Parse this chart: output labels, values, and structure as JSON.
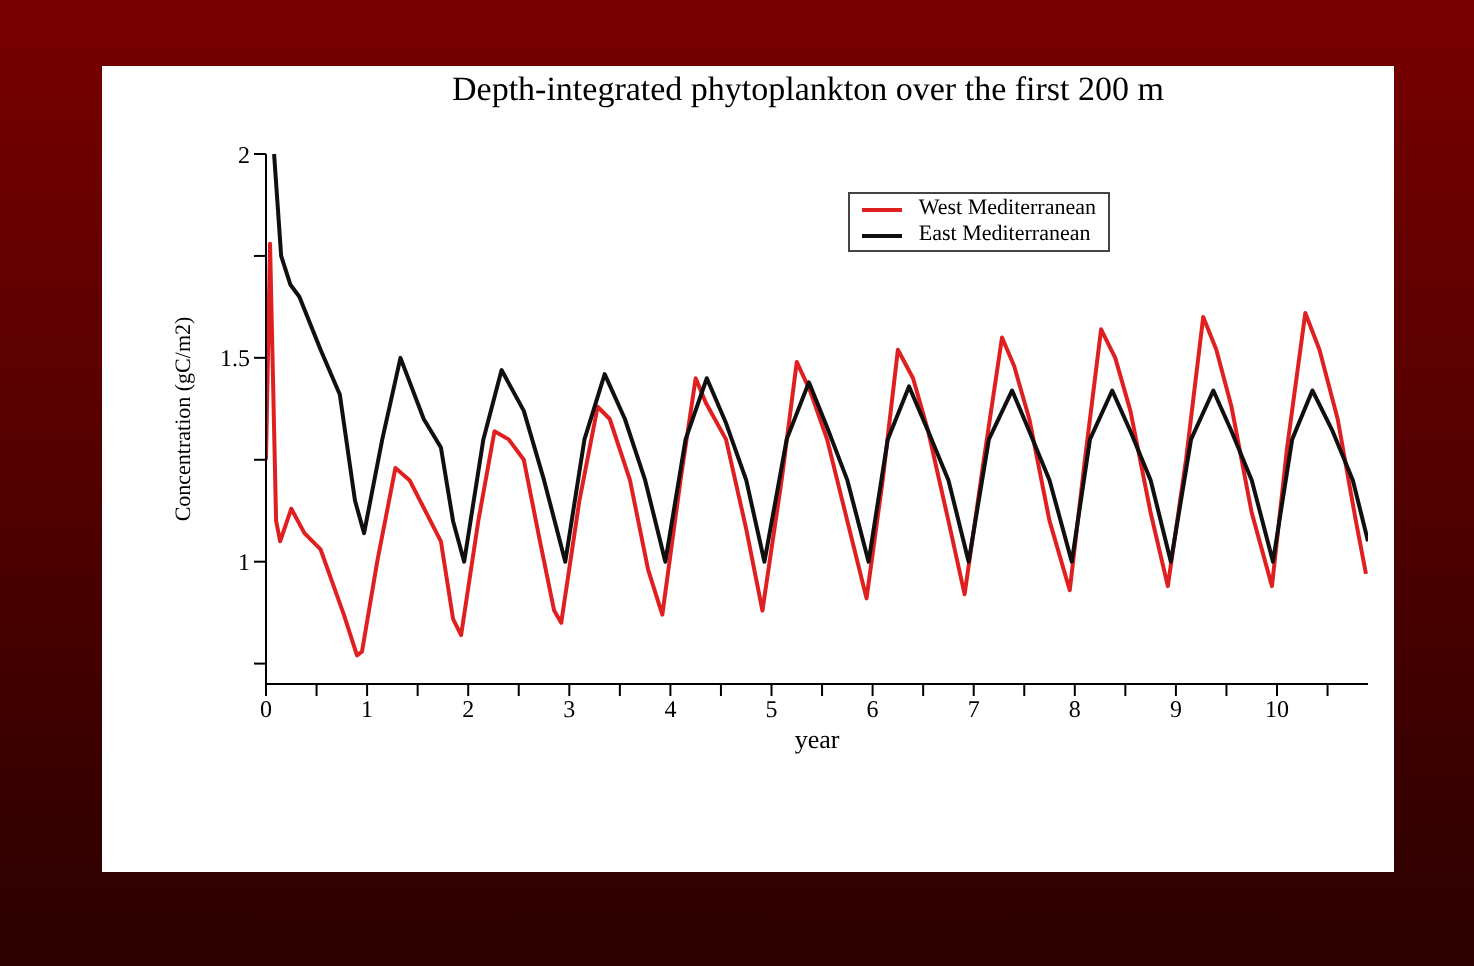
{
  "chart_data": {
    "type": "line",
    "title": "Depth-integrated phytoplankton over the first 200 m",
    "xlabel": "year",
    "ylabel": "Concentration (gC/m2)",
    "xlim": [
      0,
      10.9
    ],
    "xticks": [
      0,
      {
        "value": 0.5,
        "label": null
      },
      1,
      {
        "value": 1.5,
        "label": null
      },
      2,
      {
        "value": 2.5,
        "label": null
      },
      3,
      {
        "value": 3.5,
        "label": null
      },
      4,
      {
        "value": 4.5,
        "label": null
      },
      5,
      {
        "value": 5.5,
        "label": null
      },
      6,
      {
        "value": 6.5,
        "label": null
      },
      7,
      {
        "value": 7.5,
        "label": null
      },
      8,
      {
        "value": 8.5,
        "label": null
      },
      9,
      {
        "value": 9.5,
        "label": null
      },
      10,
      {
        "value": 10.5,
        "label": null
      }
    ],
    "ylim": [
      0.7,
      2
    ],
    "yticks": [
      {
        "value": 0.75,
        "label": null
      },
      1,
      {
        "value": 1.25,
        "label": null
      },
      1.5,
      {
        "value": 1.75,
        "label": null
      },
      2
    ],
    "grid": false,
    "legend": "top right",
    "marker": "none",
    "line_style": "solid",
    "series": [
      {
        "name": "West Mediterranean",
        "color": "#e02020",
        "x": [
          0,
          0.04,
          0.1,
          0.14,
          0.25,
          0.38,
          0.54,
          0.77,
          0.9,
          0.95,
          1.1,
          1.28,
          1.42,
          1.73,
          1.85,
          1.93,
          2.1,
          2.26,
          2.4,
          2.55,
          2.71,
          2.85,
          2.92,
          3.1,
          3.28,
          3.4,
          3.6,
          3.78,
          3.92,
          4.1,
          4.25,
          4.35,
          4.55,
          4.75,
          4.91,
          5.1,
          5.25,
          5.38,
          5.55,
          5.75,
          5.94,
          6.1,
          6.25,
          6.4,
          6.55,
          6.75,
          6.91,
          7.1,
          7.28,
          7.4,
          7.55,
          7.75,
          7.95,
          8.1,
          8.26,
          8.4,
          8.55,
          8.75,
          8.92,
          9.1,
          9.27,
          9.4,
          9.55,
          9.75,
          9.95,
          10.1,
          10.28,
          10.42,
          10.6,
          10.78,
          10.88
        ],
        "values": [
          1.25,
          1.78,
          1.1,
          1.05,
          1.13,
          1.07,
          1.03,
          0.87,
          0.77,
          0.78,
          1.0,
          1.23,
          1.2,
          1.05,
          0.86,
          0.82,
          1.1,
          1.32,
          1.3,
          1.25,
          1.05,
          0.88,
          0.85,
          1.15,
          1.38,
          1.35,
          1.2,
          0.98,
          0.87,
          1.2,
          1.45,
          1.39,
          1.3,
          1.08,
          0.88,
          1.2,
          1.49,
          1.42,
          1.3,
          1.1,
          0.91,
          1.2,
          1.52,
          1.45,
          1.32,
          1.1,
          0.92,
          1.25,
          1.55,
          1.48,
          1.35,
          1.1,
          0.93,
          1.25,
          1.57,
          1.5,
          1.37,
          1.12,
          0.94,
          1.25,
          1.6,
          1.52,
          1.38,
          1.12,
          0.94,
          1.28,
          1.61,
          1.52,
          1.35,
          1.1,
          0.97
        ]
      },
      {
        "name": "East Mediterranean",
        "color": "#101010",
        "x": [
          0.08,
          0.15,
          0.24,
          0.33,
          0.54,
          0.73,
          0.88,
          0.97,
          1.15,
          1.33,
          1.56,
          1.73,
          1.85,
          1.96,
          2.15,
          2.33,
          2.55,
          2.75,
          2.96,
          3.15,
          3.35,
          3.55,
          3.75,
          3.95,
          4.15,
          4.36,
          4.55,
          4.75,
          4.93,
          5.15,
          5.37,
          5.55,
          5.75,
          5.96,
          6.15,
          6.36,
          6.55,
          6.75,
          6.95,
          7.15,
          7.38,
          7.55,
          7.75,
          7.97,
          8.15,
          8.37,
          8.55,
          8.75,
          8.95,
          9.15,
          9.37,
          9.55,
          9.75,
          9.96,
          10.15,
          10.35,
          10.55,
          10.75,
          10.9
        ],
        "values": [
          2.0,
          1.75,
          1.68,
          1.65,
          1.52,
          1.41,
          1.15,
          1.07,
          1.3,
          1.5,
          1.35,
          1.28,
          1.1,
          1.0,
          1.3,
          1.47,
          1.37,
          1.2,
          1.0,
          1.3,
          1.46,
          1.35,
          1.2,
          1.0,
          1.3,
          1.45,
          1.34,
          1.2,
          1.0,
          1.3,
          1.44,
          1.33,
          1.2,
          1.0,
          1.3,
          1.43,
          1.32,
          1.2,
          1.0,
          1.3,
          1.42,
          1.32,
          1.2,
          1.0,
          1.3,
          1.42,
          1.32,
          1.2,
          1.0,
          1.3,
          1.42,
          1.32,
          1.2,
          1.0,
          1.3,
          1.42,
          1.32,
          1.2,
          1.05
        ]
      }
    ]
  }
}
